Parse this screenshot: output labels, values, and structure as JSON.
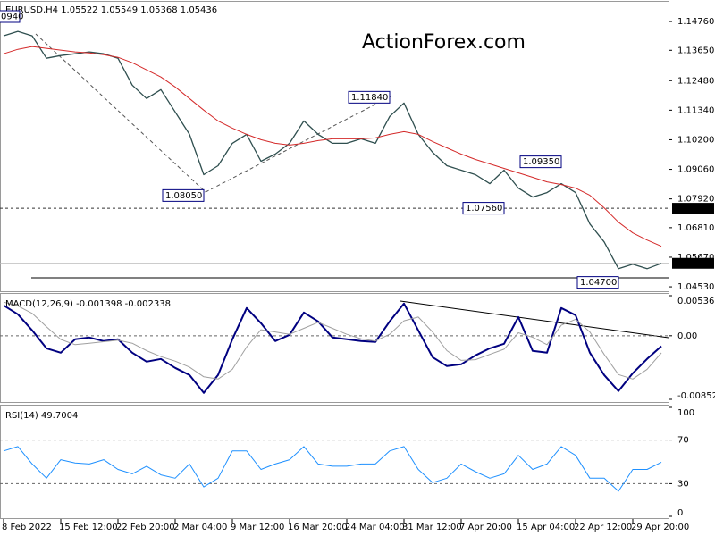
{
  "chart_data": [
    {
      "type": "price",
      "title": "EURUSD,H4  1.05522 1.05549 1.05368 1.05436",
      "watermark": "ActionForex.com",
      "edge_label": "0940",
      "xlim": [
        -0.25,
        46.5
      ],
      "ylim": [
        1.0436,
        1.1552
      ],
      "yticks": [
        {
          "value": 1.1476,
          "label": "1.14760"
        },
        {
          "value": 1.1365,
          "label": "1.13650"
        },
        {
          "value": 1.1248,
          "label": "1.12480"
        },
        {
          "value": 1.1134,
          "label": "1.11340"
        },
        {
          "value": 1.102,
          "label": "1.10200"
        },
        {
          "value": 1.0906,
          "label": "1.09060"
        },
        {
          "value": 1.0792,
          "label": "1.07920"
        },
        {
          "value": 1.0681,
          "label": "1.06810"
        },
        {
          "value": 1.0567,
          "label": "1.05670"
        },
        {
          "value": 1.0453,
          "label": "1.04530"
        }
      ],
      "series": [
        {
          "color": "#2f4f4f",
          "width": 1.3,
          "values": [
            1.14207,
            1.1438,
            1.14207,
            1.13344,
            1.13448,
            1.13517,
            1.13586,
            1.13517,
            1.13344,
            1.12308,
            1.1179,
            1.12135,
            1.11272,
            1.10408,
            1.08854,
            1.09199,
            1.10063,
            1.10408,
            1.09372,
            1.09648,
            1.10063,
            1.10926,
            1.10408,
            1.10063,
            1.10063,
            1.10235,
            1.10063,
            1.11099,
            1.11617,
            1.10408,
            1.09717,
            1.09199,
            1.09026,
            1.08854,
            1.08508,
            1.09026,
            1.08336,
            1.0799,
            1.08163,
            1.08508,
            1.08163,
            1.06954,
            1.06263,
            1.05227,
            1.054,
            1.05227,
            1.05436
          ]
        },
        {
          "color": "#d42a2a",
          "width": 1,
          "values": [
            1.13517,
            1.13689,
            1.13793,
            1.13724,
            1.13655,
            1.13586,
            1.13551,
            1.13482,
            1.13379,
            1.13171,
            1.12895,
            1.12619,
            1.12239,
            1.1179,
            1.11341,
            1.10926,
            1.1065,
            1.10408,
            1.10201,
            1.10063,
            1.09994,
            1.10063,
            1.10166,
            1.10235,
            1.10235,
            1.10235,
            1.1027,
            1.10408,
            1.10512,
            1.10408,
            1.10132,
            1.0989,
            1.09648,
            1.09441,
            1.09268,
            1.09096,
            1.08923,
            1.0875,
            1.08577,
            1.08474,
            1.08336,
            1.0806,
            1.07576,
            1.07023,
            1.06609,
            1.06333,
            1.06091
          ]
        }
      ],
      "levels": [
        {
          "value": 1.0756,
          "label": "1.07560",
          "style": "dashed"
        },
        {
          "value": 1.05436,
          "label": "1.05436",
          "style": "solid"
        }
      ],
      "annotations": [
        {
          "label": "1.08050",
          "value": 1.0805,
          "x": 14
        },
        {
          "label": "1.11840",
          "value": 1.1184,
          "x": 27
        },
        {
          "label": "1.07560",
          "value": 1.0756,
          "x": 35
        },
        {
          "label": "1.09350",
          "value": 1.0935,
          "x": 39
        },
        {
          "label": "1.04700",
          "value": 1.047,
          "x": 43
        }
      ]
    },
    {
      "type": "macd",
      "title": "MACD(12,26,9) -0.001398 -0.002338",
      "xlim": [
        -0.25,
        46.5
      ],
      "ylim": [
        -0.00852,
        0.005365
      ],
      "yticks": [
        0.005365,
        {
          "value": 0,
          "label": "0.00"
        },
        -0.00852
      ],
      "levels": [
        0
      ],
      "series": [
        {
          "color": "#000080",
          "width": 2,
          "values": [
            0.00407,
            0.00287,
            0.00072,
            -0.00168,
            -0.00227,
            -0.00048,
            -0.00024,
            -0.00072,
            -0.00048,
            -0.00227,
            -0.00347,
            -0.00311,
            -0.00431,
            -0.00527,
            -0.00766,
            -0.00527,
            -0.00048,
            0.00371,
            0.00168,
            -0.00072,
            0.00012,
            0.00311,
            0.00192,
            -0.00024,
            -0.00048,
            -0.00072,
            -0.00084,
            0.00192,
            0.00431,
            0.00072,
            -0.00287,
            -0.00407,
            -0.00383,
            -0.00263,
            -0.00168,
            -0.00108,
            0.00251,
            -0.00203,
            -0.00227,
            0.00371,
            0.00275,
            -0.00227,
            -0.00527,
            -0.00742,
            -0.00503,
            -0.00311,
            -0.0014
          ]
        },
        {
          "color": "#a0a0a0",
          "width": 1,
          "values": [
            0.0045,
            0.004,
            0.003,
            0.0012,
            -0.0005,
            -0.0012,
            -0.001,
            -0.0008,
            -0.0006,
            -0.001,
            -0.002,
            -0.0028,
            -0.0034,
            -0.0042,
            -0.0055,
            -0.0058,
            -0.0045,
            -0.0015,
            0.0008,
            0.0005,
            0.0002,
            0.001,
            0.0018,
            0.001,
            0.0002,
            -0.0004,
            -0.0007,
            0.0002,
            0.002,
            0.0025,
            0.0005,
            -0.002,
            -0.0033,
            -0.0032,
            -0.0025,
            -0.0018,
            0.0004,
            -0.0002,
            -0.0012,
            0.0014,
            0.0022,
            0.0005,
            -0.0025,
            -0.0052,
            -0.0058,
            -0.0045,
            -0.0023
          ]
        }
      ]
    },
    {
      "type": "rsi",
      "title": "RSI(14) 49.7004",
      "xlim": [
        -0.25,
        46.5
      ],
      "ylim": [
        0,
        100
      ],
      "yticks": [
        0,
        30,
        70,
        100
      ],
      "levels": [
        30,
        70
      ],
      "xticks": [
        {
          "value": 0,
          "label": "8 Feb 2022"
        },
        {
          "value": 4,
          "label": "15 Feb 12:00"
        },
        {
          "value": 8,
          "label": "22 Feb 20:00"
        },
        {
          "value": 12,
          "label": "2 Mar 04:00"
        },
        {
          "value": 16,
          "label": "9 Mar 12:00"
        },
        {
          "value": 20,
          "label": "16 Mar 20:00"
        },
        {
          "value": 24,
          "label": "24 Mar 04:00"
        },
        {
          "value": 28,
          "label": "31 Mar 12:00"
        },
        {
          "value": 32,
          "label": "7 Apr 20:00"
        },
        {
          "value": 36,
          "label": "15 Apr 04:00"
        },
        {
          "value": 40,
          "label": "22 Apr 12:00"
        },
        {
          "value": 44,
          "label": "29 Apr 20:00"
        }
      ],
      "series": [
        {
          "color": "#1e90ff",
          "width": 1,
          "values": [
            60,
            64,
            48,
            35,
            52,
            49,
            48,
            52,
            43,
            39,
            46,
            38,
            35,
            48,
            27,
            35,
            60,
            60,
            43,
            48,
            52,
            64,
            48,
            46,
            46,
            48,
            48,
            60,
            64,
            43,
            31,
            35,
            48,
            41,
            35,
            39,
            56,
            43,
            48,
            64,
            56,
            35,
            35,
            23,
            43,
            43,
            49.7004
          ]
        }
      ]
    }
  ]
}
